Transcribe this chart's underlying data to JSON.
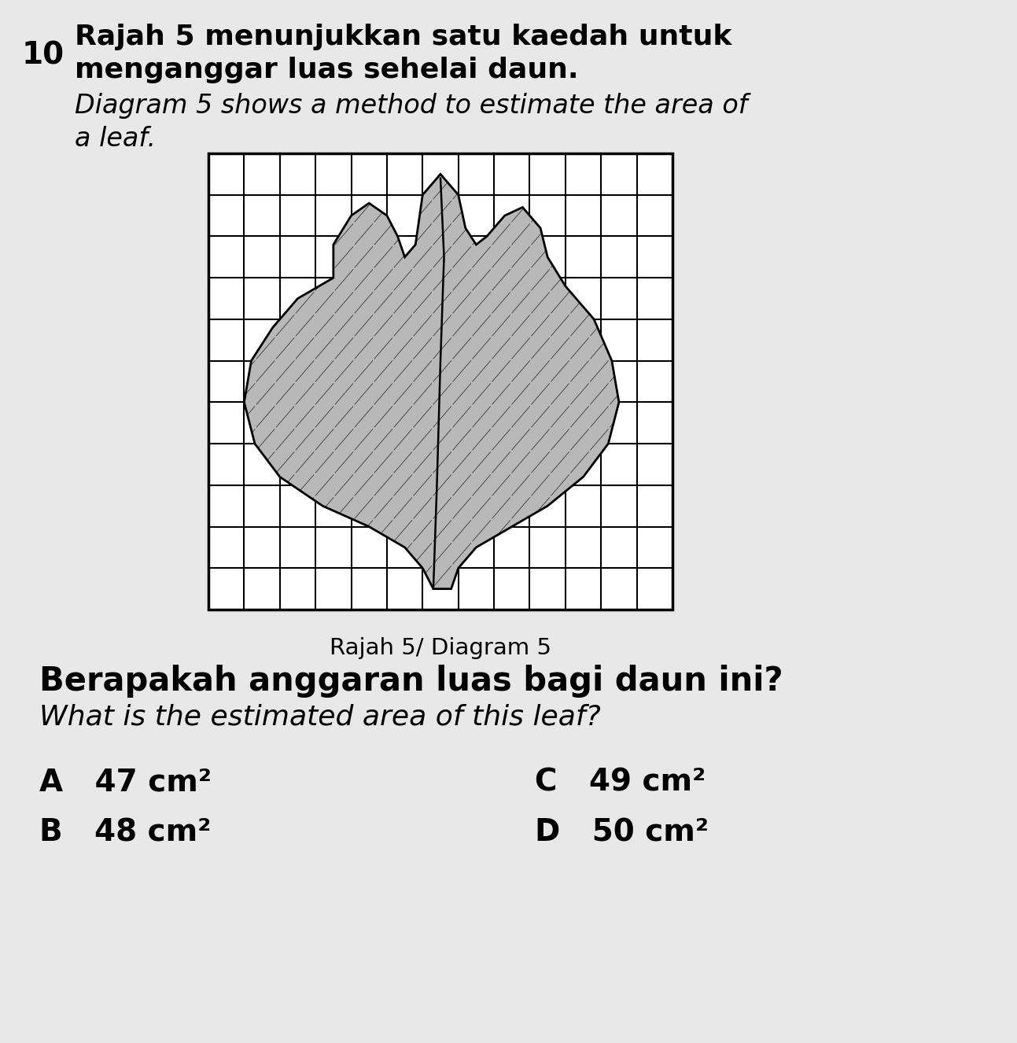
{
  "page_bg": "#e8e8e8",
  "title_number": "10",
  "title_malay_1": "Rajah 5 menunjukkan satu kaedah untuk",
  "title_malay_2": "menganggar luas sehelai daun.",
  "title_english_1": "Diagram 5 shows a method to estimate the area of",
  "title_english_2": "a leaf.",
  "diagram_caption": "Rajah 5/ Diagram 5",
  "question_malay": "Berapakah anggaran luas bagi daun ini?",
  "question_english": "What is the estimated area of this leaf?",
  "opt_A": "A   47 cm²",
  "opt_B": "B   48 cm²",
  "opt_C": "C   49 cm²",
  "opt_D": "D   50 cm²",
  "grid_cols": 13,
  "grid_rows": 11
}
